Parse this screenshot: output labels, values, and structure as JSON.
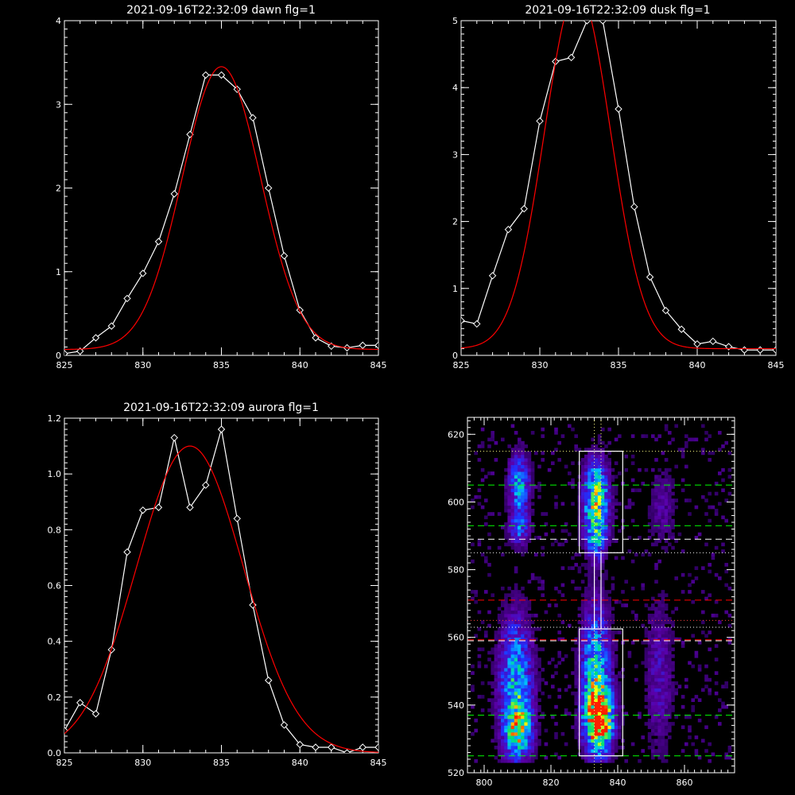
{
  "chart_data": [
    {
      "type": "line",
      "title": "2021-09-16T22:32:09 dawn flg=1",
      "xlabel": "",
      "ylabel": "",
      "xlim": [
        825,
        845
      ],
      "ylim": [
        0,
        4
      ],
      "xticks": [
        825,
        830,
        835,
        840,
        845
      ],
      "yticks": [
        0,
        1,
        2,
        3,
        4
      ],
      "grid": false,
      "series": [
        {
          "color": "#ffffff",
          "marker": "diamond",
          "x": [
            825,
            826,
            827,
            828,
            829,
            830,
            831,
            832,
            833,
            834,
            835,
            836,
            837,
            838,
            839,
            840,
            841,
            842,
            843,
            844,
            845
          ],
          "y": [
            0.02,
            0.05,
            0.21,
            0.35,
            0.68,
            0.98,
            1.36,
            1.93,
            2.64,
            3.35,
            3.35,
            3.18,
            2.84,
            2.0,
            1.19,
            0.54,
            0.21,
            0.11,
            0.09,
            0.12,
            0.12
          ]
        },
        {
          "color": "#ff0000",
          "marker": "none",
          "fit": {
            "kind": "gaussian",
            "amplitude": 3.38,
            "center": 835.0,
            "sigma": 2.5,
            "offset": 0.07
          }
        }
      ]
    },
    {
      "type": "line",
      "title": "2021-09-16T22:32:09 dusk flg=1",
      "xlabel": "",
      "ylabel": "",
      "xlim": [
        825,
        845
      ],
      "ylim": [
        0,
        5
      ],
      "xticks": [
        825,
        830,
        835,
        840,
        845
      ],
      "yticks": [
        0,
        1,
        2,
        3,
        4,
        5
      ],
      "grid": false,
      "series": [
        {
          "color": "#ffffff",
          "marker": "diamond",
          "x": [
            825,
            826,
            827,
            828,
            829,
            830,
            831,
            832,
            833,
            834,
            835,
            836,
            837,
            838,
            839,
            840,
            841,
            842,
            843,
            844,
            845
          ],
          "y": [
            0.52,
            0.47,
            1.19,
            1.88,
            2.19,
            3.5,
            4.39,
            4.45,
            5.0,
            5.0,
            3.68,
            2.22,
            1.17,
            0.67,
            0.39,
            0.17,
            0.21,
            0.13,
            0.08,
            0.08,
            0.08
          ]
        },
        {
          "color": "#ff0000",
          "marker": "none",
          "fit": {
            "kind": "gaussian",
            "amplitude": 5.35,
            "center": 832.4,
            "sigma": 2.1,
            "offset": 0.1
          }
        }
      ]
    },
    {
      "type": "line",
      "title": "2021-09-16T22:32:09 aurora flg=1",
      "xlabel": "",
      "ylabel": "",
      "xlim": [
        825,
        845
      ],
      "ylim": [
        0,
        1.2
      ],
      "xticks": [
        825,
        830,
        835,
        840,
        845
      ],
      "yticks": [
        0.0,
        0.2,
        0.4,
        0.6,
        0.8,
        1.0,
        1.2
      ],
      "ytick_labels": [
        "0.0",
        "0.2",
        "0.4",
        "0.6",
        "0.8",
        "1.0",
        "1.2"
      ],
      "grid": false,
      "series": [
        {
          "color": "#ffffff",
          "marker": "diamond",
          "x": [
            825,
            826,
            827,
            828,
            829,
            830,
            831,
            832,
            833,
            834,
            835,
            836,
            837,
            838,
            839,
            840,
            841,
            842,
            843,
            844,
            845
          ],
          "y": [
            0.08,
            0.18,
            0.14,
            0.37,
            0.72,
            0.87,
            0.88,
            1.13,
            0.88,
            0.96,
            1.16,
            0.84,
            0.53,
            0.26,
            0.1,
            0.03,
            0.02,
            0.02,
            0.0,
            0.02,
            0.02
          ]
        },
        {
          "color": "#ff0000",
          "marker": "none",
          "fit": {
            "kind": "gaussian",
            "amplitude": 1.1,
            "center": 833.0,
            "sigma": 3.4,
            "offset": 0.0
          }
        }
      ]
    },
    {
      "type": "heatmap",
      "title": "",
      "xlim": [
        795,
        875
      ],
      "ylim": [
        520,
        625
      ],
      "xticks": [
        800,
        820,
        840,
        860
      ],
      "yticks": [
        520,
        540,
        560,
        580,
        600,
        620
      ],
      "colormap": [
        "#1a0040",
        "#5a00a8",
        "#2030ff",
        "#00c0ff",
        "#00e070",
        "#ffff00",
        "#ff2000"
      ],
      "intensity_sources": [
        {
          "x": 810,
          "y": 605,
          "sx": 2.2,
          "sy": 6,
          "amp": 0.5
        },
        {
          "x": 810,
          "y": 592,
          "sx": 2.2,
          "sy": 4,
          "amp": 0.35
        },
        {
          "x": 809,
          "y": 545,
          "sx": 3.5,
          "sy": 14,
          "amp": 0.55
        },
        {
          "x": 810,
          "y": 532,
          "sx": 2.5,
          "sy": 5,
          "amp": 0.55
        },
        {
          "x": 833,
          "y": 600,
          "sx": 2.6,
          "sy": 8,
          "amp": 0.75
        },
        {
          "x": 833,
          "y": 588,
          "sx": 2,
          "sy": 4,
          "amp": 0.3
        },
        {
          "x": 833,
          "y": 548,
          "sx": 3,
          "sy": 14,
          "amp": 0.6
        },
        {
          "x": 834,
          "y": 535,
          "sx": 2.8,
          "sy": 6,
          "amp": 0.95
        },
        {
          "x": 852,
          "y": 548,
          "sx": 3,
          "sy": 16,
          "amp": 0.2
        },
        {
          "x": 853,
          "y": 598,
          "sx": 3,
          "sy": 8,
          "amp": 0.15
        }
      ],
      "regions": [
        {
          "x0": 828.5,
          "x1": 841.5,
          "y0": 585,
          "y1": 615,
          "color": "#ffffff"
        },
        {
          "x0": 828.5,
          "x1": 841.5,
          "y0": 525,
          "y1": 562.5,
          "color": "#ffffff"
        },
        {
          "x0": 833,
          "x1": 835,
          "y0": 562.5,
          "y1": 585,
          "color": "#ffffff"
        }
      ],
      "hlines": [
        {
          "y": 615,
          "color": "#ffff80",
          "style": "dotted"
        },
        {
          "y": 605,
          "color": "#00ff00",
          "style": "dashed"
        },
        {
          "y": 593,
          "color": "#00ff00",
          "style": "dashed"
        },
        {
          "y": 589,
          "color": "#ffffff",
          "style": "dashed"
        },
        {
          "y": 585,
          "color": "#ffffff",
          "style": "dotted"
        },
        {
          "y": 571,
          "color": "#ff0000",
          "style": "dashed"
        },
        {
          "y": 565,
          "color": "#ff4040",
          "style": "dotted"
        },
        {
          "y": 563,
          "color": "#ffffff",
          "style": "dotted"
        },
        {
          "y": 559,
          "color": "#ffffff",
          "style": "dashed"
        },
        {
          "y": 559.3,
          "color": "#ff0000",
          "style": "dashed"
        },
        {
          "y": 537,
          "color": "#00ff00",
          "style": "dashed"
        },
        {
          "y": 525,
          "color": "#00ff00",
          "style": "dashed"
        }
      ],
      "vlines": [
        {
          "x": 833,
          "color": "#ffff80",
          "style": "dotted"
        },
        {
          "x": 835,
          "color": "#ffff80",
          "style": "dotted"
        }
      ]
    }
  ]
}
